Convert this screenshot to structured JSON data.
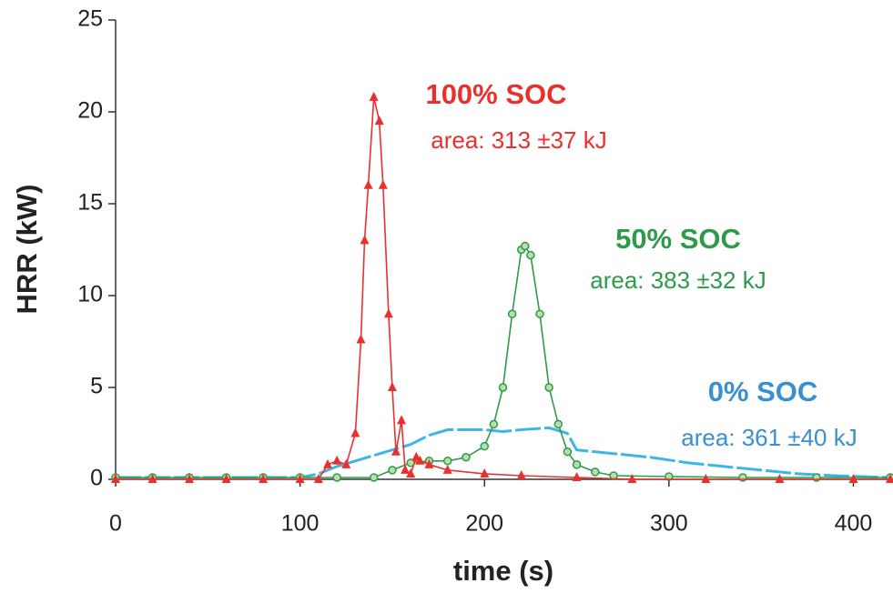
{
  "chart_data": {
    "type": "line",
    "x_label": "time (s)",
    "y_label": "HRR (kW)",
    "xlim": [
      0,
      420
    ],
    "ylim": [
      0,
      25
    ],
    "xticks": [
      0,
      100,
      200,
      300,
      400
    ],
    "yticks": [
      0,
      5,
      10,
      15,
      20,
      25
    ],
    "annotations": [
      "100% SOC",
      "area: 313 ±37 kJ",
      "50% SOC",
      "area: 383 ±32 kJ",
      "0% SOC",
      "area: 361 ±40 kJ"
    ],
    "series": [
      {
        "name": "100% SOC",
        "color": "#e8312f",
        "marker": "triangle",
        "x": [
          0,
          20,
          40,
          60,
          80,
          100,
          110,
          115,
          120,
          125,
          130,
          133,
          135,
          137,
          140,
          143,
          145,
          148,
          150,
          152,
          155,
          157,
          160,
          163,
          165,
          170,
          180,
          200,
          220,
          250,
          280,
          320,
          360,
          400,
          420
        ],
        "values": [
          0,
          0,
          0,
          0,
          0,
          0,
          0,
          0.8,
          1.0,
          0.8,
          2.5,
          7.6,
          13,
          16,
          20.8,
          19.5,
          16,
          9,
          5,
          1.5,
          3.2,
          0.5,
          0.3,
          1.2,
          1.0,
          0.8,
          0.5,
          0.3,
          0.2,
          0.1,
          0,
          0,
          0,
          0,
          0
        ]
      },
      {
        "name": "50% SOC",
        "color": "#2e9a4c",
        "marker": "circle",
        "x": [
          0,
          20,
          40,
          60,
          80,
          100,
          120,
          140,
          150,
          160,
          170,
          180,
          190,
          200,
          205,
          210,
          215,
          220,
          222,
          225,
          230,
          235,
          240,
          245,
          250,
          260,
          270,
          300,
          340,
          380,
          420
        ],
        "values": [
          0.1,
          0.1,
          0.1,
          0.1,
          0.1,
          0.1,
          0.1,
          0.1,
          0.5,
          0.9,
          1.0,
          1.0,
          1.2,
          1.8,
          3,
          5,
          9,
          12.5,
          12.7,
          12.2,
          9,
          5,
          3,
          1.5,
          0.8,
          0.4,
          0.2,
          0.15,
          0.1,
          0.1,
          0.1
        ]
      },
      {
        "name": "0% SOC",
        "color": "#3cb6e6",
        "marker": "none",
        "x": [
          0,
          100,
          110,
          120,
          130,
          140,
          150,
          160,
          170,
          180,
          200,
          210,
          220,
          235,
          245,
          250,
          270,
          290,
          310,
          330,
          350,
          370,
          390,
          420
        ],
        "values": [
          0.1,
          0.1,
          0.3,
          0.7,
          1.0,
          1.3,
          1.6,
          1.9,
          2.4,
          2.7,
          2.7,
          2.6,
          2.7,
          2.8,
          2.5,
          1.6,
          1.4,
          1.2,
          0.9,
          0.7,
          0.5,
          0.3,
          0.2,
          0.1
        ]
      }
    ]
  }
}
